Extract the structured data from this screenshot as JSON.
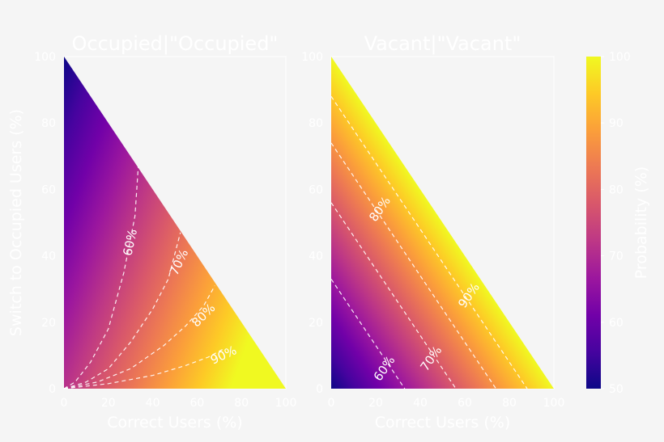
{
  "chart_data": [
    {
      "type": "heatmap",
      "title": "Occupied|\"Occupied\"",
      "xlabel": "Correct Users (%)",
      "ylabel": "Switch to Occupied Users (%)",
      "xlim": [
        0,
        100
      ],
      "ylim": [
        0,
        100
      ],
      "xticks": [
        "0",
        "20",
        "40",
        "60",
        "80",
        "100"
      ],
      "yticks": [
        "0",
        "20",
        "40",
        "60",
        "80",
        "100"
      ],
      "domain": "x + y <= 100",
      "value_range": [
        50,
        100
      ],
      "contour_labels": [
        "60%",
        "70%",
        "80%",
        "90%"
      ],
      "contours": [
        {
          "label": "60%",
          "points": [
            [
              0,
              0
            ],
            [
              5,
              2
            ],
            [
              12,
              8
            ],
            [
              20,
              18
            ],
            [
              27,
              35
            ],
            [
              32,
              52
            ],
            [
              33.5,
              67
            ]
          ]
        },
        {
          "label": "70%",
          "points": [
            [
              0,
              0
            ],
            [
              10,
              2
            ],
            [
              20,
              6
            ],
            [
              30,
              14
            ],
            [
              40,
              24
            ],
            [
              47,
              33
            ],
            [
              52.5,
              47
            ]
          ]
        },
        {
          "label": "80%",
          "points": [
            [
              0,
              0
            ],
            [
              15,
              2
            ],
            [
              30,
              6
            ],
            [
              45,
              13
            ],
            [
              55,
              19
            ],
            [
              63,
              25
            ],
            [
              68,
              31
            ]
          ]
        },
        {
          "label": "90%",
          "points": [
            [
              0,
              0
            ],
            [
              20,
              1.5
            ],
            [
              40,
              4
            ],
            [
              55,
              7
            ],
            [
              65,
              9.5
            ],
            [
              72,
              12
            ]
          ]
        }
      ]
    },
    {
      "type": "heatmap",
      "title": "Vacant|\"Vacant\"",
      "xlabel": "Correct Users (%)",
      "ylabel": "",
      "xlim": [
        0,
        100
      ],
      "ylim": [
        0,
        100
      ],
      "xticks": [
        "0",
        "20",
        "40",
        "60",
        "80",
        "100"
      ],
      "yticks": [
        "0",
        "20",
        "40",
        "60",
        "80",
        "100"
      ],
      "domain": "x + y <= 100",
      "value_range": [
        50,
        100
      ],
      "contour_labels": [
        "60%",
        "70%",
        "80%",
        "90%"
      ],
      "contours": [
        {
          "label": "60%",
          "points": [
            [
              0,
              33
            ],
            [
              33,
              0
            ]
          ]
        },
        {
          "label": "70%",
          "points": [
            [
              0,
              56
            ],
            [
              56,
              0
            ]
          ]
        },
        {
          "label": "80%",
          "points": [
            [
              0,
              74
            ],
            [
              74,
              0
            ]
          ]
        },
        {
          "label": "90%",
          "points": [
            [
              0,
              88
            ],
            [
              88,
              0
            ]
          ]
        }
      ]
    }
  ],
  "colorbar": {
    "label": "Probability (%)",
    "range": [
      50,
      100
    ],
    "ticks": [
      "50",
      "60",
      "70",
      "80",
      "90",
      "100"
    ],
    "colormap": [
      "#0d0887",
      "#46039f",
      "#7201a8",
      "#9c179e",
      "#bd3786",
      "#d8576b",
      "#ed7953",
      "#fb9f3a",
      "#fdca26",
      "#f0f921"
    ]
  }
}
